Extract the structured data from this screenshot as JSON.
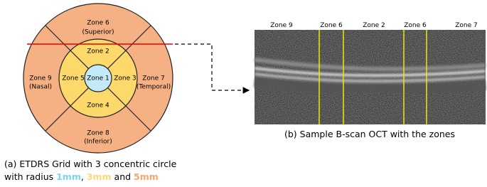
{
  "etdrs": {
    "zones": [
      {
        "label": "Zone 6",
        "sub": "(Superior)"
      },
      {
        "label": "Zone 2"
      },
      {
        "label": "Zone 9",
        "sub": "(Nasal)"
      },
      {
        "label": "Zone 5"
      },
      {
        "label": "Zone 1"
      },
      {
        "label": "Zone 3"
      },
      {
        "label": "Zone 7",
        "sub": "(Temporal)"
      },
      {
        "label": "Zone 4"
      },
      {
        "label": "Zone 8",
        "sub": "(Inferior)"
      }
    ]
  },
  "caption_a": {
    "line1": "(a) ETDRS Grid with 3 concentric circle",
    "line2": "with radius ",
    "r1": "1mm",
    "sep1": ", ",
    "r3": "3mm",
    "sep2": " and ",
    "r5": "5mm"
  },
  "oct": {
    "zone_labels": [
      "Zone 9",
      "Zone 6",
      "Zone 2",
      "Zone 6",
      "Zone 7"
    ]
  },
  "caption_b": "(b) Sample B-scan OCT with the zones"
}
